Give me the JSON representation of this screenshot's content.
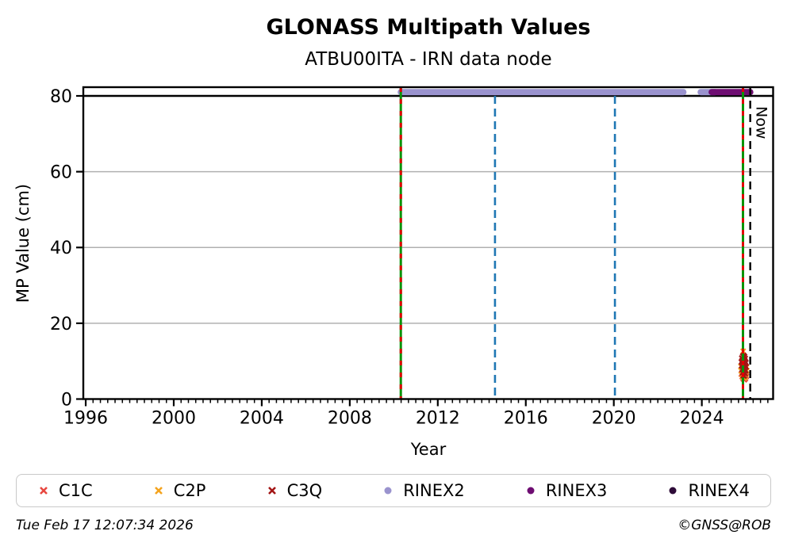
{
  "title": "GLONASS Multipath Values",
  "subtitle": "ATBU00ITA - IRN data node",
  "footer": {
    "timestamp": "Tue Feb 17 12:07:34 2026",
    "credit": "©GNSS@ROB"
  },
  "legend": {
    "items": [
      {
        "label": "C1C",
        "marker": "x",
        "color": "#e8473f"
      },
      {
        "label": "C2P",
        "marker": "x",
        "color": "#f4a31d"
      },
      {
        "label": "C3Q",
        "marker": "x",
        "color": "#a31515"
      },
      {
        "label": "RINEX2",
        "marker": "circle",
        "color": "#9a93ce"
      },
      {
        "label": "RINEX3",
        "marker": "circle",
        "color": "#6e0d72"
      },
      {
        "label": "RINEX4",
        "marker": "circle",
        "color": "#2e0b38"
      }
    ]
  },
  "chart_data": {
    "type": "scatter",
    "title": "GLONASS Multipath Values",
    "subtitle": "ATBU00ITA - IRN data node",
    "xlabel": "Year",
    "ylabel": "MP Value (cm)",
    "now_label": "Now",
    "xlim": [
      1995.89,
      2027.24
    ],
    "ylim": [
      0,
      82.3
    ],
    "xticks": [
      1996,
      2000,
      2004,
      2008,
      2012,
      2016,
      2020,
      2024
    ],
    "yticks": [
      0,
      20,
      40,
      60,
      80
    ],
    "grid_y": [
      20,
      40,
      60
    ],
    "cutoff_line_y": 80,
    "minor_tick_step_years": 0.3333,
    "colors": {
      "grid": "#b0b0b0",
      "axis": "#000000",
      "green_line": "#0a930a",
      "red_dash": "#e00000",
      "blue_dash": "#1f77b4",
      "now_line": "#000000"
    },
    "event_lines": [
      {
        "x": 2010.32,
        "style": "green-red",
        "full_height": true
      },
      {
        "x": 2014.6,
        "style": "blue-dashed",
        "full_height": false
      },
      {
        "x": 2020.05,
        "style": "blue-dashed",
        "full_height": false
      },
      {
        "x": 2025.87,
        "style": "green-red",
        "full_height": true
      },
      {
        "x": 2026.2,
        "style": "black-dashed",
        "full_height": true,
        "label": "Now"
      }
    ],
    "series": [
      {
        "name": "RINEX2",
        "marker": "circle",
        "color": "#9a93ce",
        "band_value": 81,
        "segments": [
          [
            2010.32,
            2023.16
          ],
          [
            2023.95,
            2024.6
          ]
        ]
      },
      {
        "name": "RINEX3",
        "marker": "circle",
        "color": "#6e0d72",
        "band_value": 81,
        "segments": [
          [
            2024.45,
            2026.2
          ]
        ]
      },
      {
        "name": "RINEX4",
        "marker": "circle",
        "color": "#2e0b38",
        "band_value": 81,
        "segments": []
      },
      {
        "name": "C1C",
        "marker": "x",
        "color": "#e8473f",
        "points": [
          [
            2025.84,
            5.9
          ],
          [
            2025.88,
            5.4
          ],
          [
            2025.93,
            5.1
          ],
          [
            2025.98,
            5.4
          ],
          [
            2026.02,
            6.0
          ],
          [
            2025.8,
            6.6
          ]
        ]
      },
      {
        "name": "C2P",
        "marker": "x",
        "color": "#f4a31d",
        "points": [
          [
            2025.88,
            12.6
          ],
          [
            2025.78,
            8.6
          ],
          [
            2025.8,
            7.4
          ],
          [
            2025.83,
            6.5
          ],
          [
            2025.87,
            5.9
          ],
          [
            2025.92,
            5.6
          ],
          [
            2025.97,
            5.9
          ],
          [
            2026.01,
            6.6
          ],
          [
            2026.04,
            7.5
          ],
          [
            2026.03,
            8.4
          ]
        ]
      },
      {
        "name": "C3Q",
        "marker": "x",
        "color": "#a31515",
        "points": [
          [
            2025.82,
            10.8
          ],
          [
            2025.86,
            11.3
          ],
          [
            2025.9,
            11.5
          ],
          [
            2025.94,
            11.2
          ],
          [
            2025.97,
            10.7
          ],
          [
            2025.8,
            9.8
          ],
          [
            2025.84,
            10.2
          ],
          [
            2025.88,
            10.5
          ],
          [
            2025.92,
            10.4
          ],
          [
            2025.96,
            10.0
          ],
          [
            2026.0,
            9.6
          ],
          [
            2025.81,
            8.8
          ],
          [
            2025.85,
            9.2
          ],
          [
            2025.89,
            9.4
          ],
          [
            2025.93,
            9.3
          ],
          [
            2025.97,
            8.9
          ],
          [
            2026.01,
            8.5
          ],
          [
            2025.83,
            7.8
          ],
          [
            2025.87,
            8.1
          ],
          [
            2025.91,
            8.2
          ],
          [
            2025.95,
            7.9
          ],
          [
            2025.99,
            7.5
          ],
          [
            2025.85,
            6.9
          ],
          [
            2025.89,
            7.1
          ],
          [
            2025.93,
            7.0
          ],
          [
            2025.97,
            6.7
          ],
          [
            2025.88,
            6.2
          ],
          [
            2025.92,
            6.1
          ]
        ]
      }
    ]
  }
}
